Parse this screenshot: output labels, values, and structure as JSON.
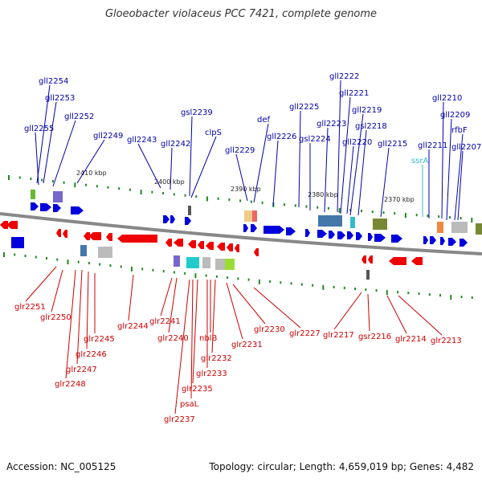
{
  "title": "Gloeobacter violaceus PCC 7421, complete genome",
  "footer": {
    "accession": "Accession: NC_005125",
    "summary": "Topology: circular; Length: 4,659,019 bp; Genes: 4,482"
  },
  "colors": {
    "forward": "#0000dd",
    "reverse": "#ee0000",
    "forward_label": "#0000aa",
    "reverse_label": "#cc0000",
    "rna_label": "#33bbcc",
    "backbone": "#888888",
    "tick": "#228822"
  },
  "scale_marks": [
    "2410 kbp",
    "2400 kbp",
    "2390 kbp",
    "2380 kbp",
    "2370 kbp"
  ],
  "forward_labels": [
    "gll2254",
    "gll2253",
    "gll2255",
    "gll2252",
    "gll2249",
    "gll2243",
    "gll2242",
    "gsl2239",
    "clpS",
    "gll2229",
    "def",
    "gll2226",
    "gll2225",
    "gsl2224",
    "gll2223",
    "gll2222",
    "gll2221",
    "gll2220",
    "gll2219",
    "gsl2218",
    "gll2215",
    "ssrA",
    "gll2211",
    "gll2210",
    "gll2209",
    "rfbF",
    "gll2207"
  ],
  "reverse_labels": [
    "glr2251",
    "glr2250",
    "glr2245",
    "glr2246",
    "glr2247",
    "glr2248",
    "glr2244",
    "glr2241",
    "glr2240",
    "nblB",
    "glr2232",
    "glr2233",
    "glr2235",
    "psaL",
    "glr2237",
    "glr2231",
    "glr2230",
    "glr2227",
    "glr2217",
    "gsr2216",
    "glr2214",
    "glr2213"
  ]
}
